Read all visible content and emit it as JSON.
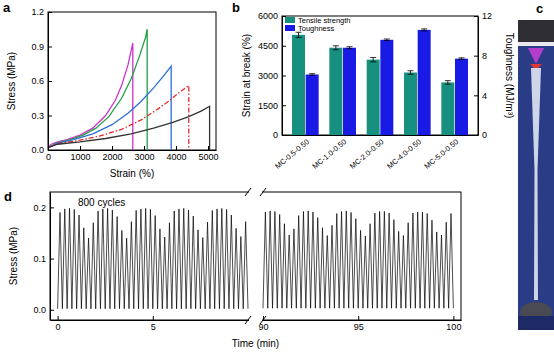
{
  "chart_data": [
    {
      "type": "line",
      "label": "a",
      "x_label": "Strain (%)",
      "y_label": "Stress (MPa)",
      "xlim": [
        0,
        5250
      ],
      "xticks": [
        0,
        1000,
        2000,
        3000,
        4000,
        5000
      ],
      "ylim": [
        0,
        1.2
      ],
      "yticks": [
        {
          "value": 0,
          "label": "0.0"
        },
        0.3,
        0.6,
        0.9,
        1.2
      ],
      "series": [
        {
          "color": "#cc33cc",
          "line_style": "solid",
          "x": [
            0,
            100,
            300,
            600,
            1000,
            1400,
            1800,
            2100,
            2300,
            2500,
            2650,
            2650
          ],
          "values": [
            0.02,
            0.05,
            0.07,
            0.09,
            0.13,
            0.19,
            0.3,
            0.43,
            0.56,
            0.74,
            0.93,
            0
          ]
        },
        {
          "color": "#22a045",
          "line_style": "solid",
          "x": [
            0,
            300,
            700,
            1100,
            1500,
            1900,
            2300,
            2600,
            2850,
            3050,
            3100,
            3100
          ],
          "values": [
            0.02,
            0.065,
            0.09,
            0.13,
            0.19,
            0.29,
            0.45,
            0.62,
            0.81,
            0.98,
            1.05,
            0
          ]
        },
        {
          "color": "#2b6fd6",
          "line_style": "solid",
          "x": [
            0,
            300,
            800,
            1400,
            2000,
            2500,
            2900,
            3300,
            3600,
            3850,
            3850
          ],
          "values": [
            0.02,
            0.06,
            0.09,
            0.14,
            0.22,
            0.32,
            0.42,
            0.54,
            0.64,
            0.73,
            0
          ]
        },
        {
          "color": "#e8262a",
          "line_style": "dashdot",
          "x": [
            0,
            300,
            900,
            1600,
            2300,
            2900,
            3400,
            3800,
            4100,
            4400,
            4400
          ],
          "values": [
            0.02,
            0.055,
            0.08,
            0.12,
            0.18,
            0.26,
            0.35,
            0.43,
            0.5,
            0.56,
            0
          ]
        },
        {
          "color": "#333333",
          "line_style": "solid",
          "x": [
            0,
            300,
            1000,
            1800,
            2600,
            3300,
            3900,
            4400,
            4800,
            5050,
            5050
          ],
          "values": [
            0.02,
            0.05,
            0.07,
            0.1,
            0.14,
            0.19,
            0.24,
            0.29,
            0.34,
            0.38,
            0
          ]
        }
      ]
    },
    {
      "type": "bar",
      "label": "b",
      "y_label": "Strain at break (%)",
      "y2_label": "Toughness (MJ/m³)",
      "categories": [
        "MC-0.5-0.50",
        "MC-1.0-0.50",
        "MC-2.0-0.50",
        "MC-4.0-0.50",
        "MC-5.0-0.50"
      ],
      "ylim": [
        0,
        6000
      ],
      "yticks": [
        0,
        1500,
        3000,
        4500,
        6000
      ],
      "y2lim": [
        0,
        12
      ],
      "y2ticks": [
        0,
        4,
        8,
        12
      ],
      "legend": "upper left",
      "series": [
        {
          "name": "Tensile strength",
          "color": "#17907f",
          "values": [
            5050,
            4400,
            3800,
            3150,
            2650
          ],
          "errors": [
            130,
            100,
            110,
            90,
            90
          ]
        },
        {
          "name": "Toughness",
          "color": "#1a1ae6",
          "axis": "y2",
          "values": [
            6.1,
            8.8,
            9.6,
            10.6,
            7.7
          ],
          "errors": [
            0.08,
            0.1,
            0.08,
            0.1,
            0.08
          ]
        }
      ]
    },
    {
      "type": "image",
      "label": "c"
    },
    {
      "type": "line",
      "label": "d",
      "x_label": "Time (min)",
      "y_label": "Stress (MPa)",
      "annotation": "800 cycles",
      "xlim": [
        -0.4,
        100.4
      ],
      "xbreak": [
        10,
        90
      ],
      "xticks": [
        0,
        5,
        90,
        95,
        100
      ],
      "ylim": [
        -0.02,
        0.23
      ],
      "yticks": [
        {
          "value": 0,
          "label": "0.0"
        },
        0.1,
        0.2
      ],
      "series": [
        {
          "color": "#000000",
          "line_style": "solid",
          "x": [
            0,
            0.125,
            0.25,
            0.375,
            0.5,
            0.625,
            0.75,
            0.875,
            1,
            1.125,
            1.25,
            1.375,
            1.5,
            1.625,
            1.75,
            1.875,
            2,
            2.125,
            2.25,
            2.375,
            2.5,
            2.625,
            2.75,
            2.875,
            3,
            3.125,
            3.25,
            3.375,
            3.5,
            3.625,
            3.75,
            3.875,
            4,
            4.125,
            4.25,
            4.375,
            4.5,
            4.625,
            4.75,
            4.875,
            5,
            5.125,
            5.25,
            5.375,
            5.5,
            5.625,
            5.75,
            5.875,
            6,
            6.125,
            6.25,
            6.375,
            6.5,
            6.625,
            6.75,
            6.875,
            7,
            7.125,
            7.25,
            7.375,
            7.5,
            7.625,
            7.75,
            7.875,
            8,
            8.125,
            8.25,
            8.375,
            8.5,
            8.625,
            8.75,
            8.875,
            9,
            9.125,
            9.25,
            9.375,
            9.5,
            9.625,
            9.75,
            9.875,
            10
          ],
          "values": [
            0.002,
            0.19,
            0.002,
            0.197,
            0.002,
            0.198,
            0.002,
            0.196,
            0.002,
            0.185,
            0.002,
            0.16,
            0.002,
            0.14,
            0.002,
            0.17,
            0.002,
            0.193,
            0.002,
            0.197,
            0.002,
            0.198,
            0.002,
            0.195,
            0.002,
            0.182,
            0.002,
            0.155,
            0.002,
            0.14,
            0.002,
            0.172,
            0.002,
            0.194,
            0.002,
            0.197,
            0.002,
            0.198,
            0.002,
            0.196,
            0.002,
            0.184,
            0.002,
            0.158,
            0.002,
            0.142,
            0.002,
            0.17,
            0.002,
            0.193,
            0.002,
            0.197,
            0.002,
            0.198,
            0.002,
            0.195,
            0.002,
            0.183,
            0.002,
            0.156,
            0.002,
            0.141,
            0.002,
            0.171,
            0.002,
            0.194,
            0.002,
            0.197,
            0.002,
            0.198,
            0.002,
            0.196,
            0.002,
            0.185,
            0.002,
            0.159,
            0.002,
            0.143,
            0.002,
            0.172,
            0.002
          ]
        },
        {
          "color": "#000000",
          "line_style": "solid",
          "x": [
            90,
            90.125,
            90.25,
            90.375,
            90.5,
            90.625,
            90.75,
            90.875,
            91,
            91.125,
            91.25,
            91.375,
            91.5,
            91.625,
            91.75,
            91.875,
            92,
            92.125,
            92.25,
            92.375,
            92.5,
            92.625,
            92.75,
            92.875,
            93,
            93.125,
            93.25,
            93.375,
            93.5,
            93.625,
            93.75,
            93.875,
            94,
            94.125,
            94.25,
            94.375,
            94.5,
            94.625,
            94.75,
            94.875,
            95,
            95.125,
            95.25,
            95.375,
            95.5,
            95.625,
            95.75,
            95.875,
            96,
            96.125,
            96.25,
            96.375,
            96.5,
            96.625,
            96.75,
            96.875,
            97,
            97.125,
            97.25,
            97.375,
            97.5,
            97.625,
            97.75,
            97.875,
            98,
            98.125,
            98.25,
            98.375,
            98.5,
            98.625,
            98.75,
            98.875,
            99,
            99.125,
            99.25,
            99.375,
            99.5,
            99.625,
            99.75,
            99.875,
            100
          ],
          "values": [
            0.003,
            0.191,
            0.003,
            0.193,
            0.003,
            0.192,
            0.003,
            0.186,
            0.003,
            0.168,
            0.003,
            0.146,
            0.003,
            0.158,
            0.003,
            0.184,
            0.003,
            0.192,
            0.003,
            0.193,
            0.003,
            0.191,
            0.003,
            0.18,
            0.003,
            0.16,
            0.003,
            0.145,
            0.003,
            0.165,
            0.003,
            0.188,
            0.003,
            0.192,
            0.003,
            0.193,
            0.003,
            0.19,
            0.003,
            0.178,
            0.003,
            0.155,
            0.003,
            0.144,
            0.003,
            0.168,
            0.003,
            0.189,
            0.003,
            0.192,
            0.003,
            0.192,
            0.003,
            0.189,
            0.003,
            0.176,
            0.003,
            0.153,
            0.003,
            0.145,
            0.003,
            0.17,
            0.003,
            0.189,
            0.003,
            0.191,
            0.003,
            0.191,
            0.003,
            0.188,
            0.003,
            0.175,
            0.003,
            0.152,
            0.003,
            0.146,
            0.003,
            0.171,
            0.003,
            0.188,
            0.003
          ]
        }
      ]
    }
  ]
}
